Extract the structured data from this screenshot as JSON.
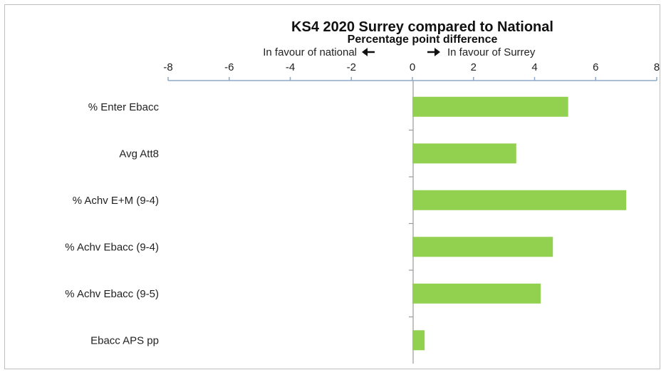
{
  "chart_data": {
    "type": "bar",
    "orientation": "horizontal",
    "title": "KS4 2020 Surrey compared to National",
    "subtitle": "Percentage point difference",
    "annotation_left": "In favour of national",
    "annotation_right": "In favour of Surrey",
    "categories": [
      "% Enter Ebacc",
      "Avg Att8",
      "% Achv E+M (9-4)",
      "% Achv Ebacc (9-4)",
      "% Achv Ebacc (9-5)",
      "Ebacc APS pp"
    ],
    "values": [
      5.1,
      3.4,
      7.0,
      4.6,
      4.2,
      0.4
    ],
    "xlim": [
      -8,
      8
    ],
    "x_ticks": [
      "-8",
      "-6",
      "-4",
      "-2",
      "0",
      "2",
      "4",
      "6",
      "8"
    ],
    "axis_position": "top",
    "grid": false,
    "legend": "none",
    "colors": {
      "bar": "#92d050",
      "axis": "#8ea9c8"
    }
  }
}
